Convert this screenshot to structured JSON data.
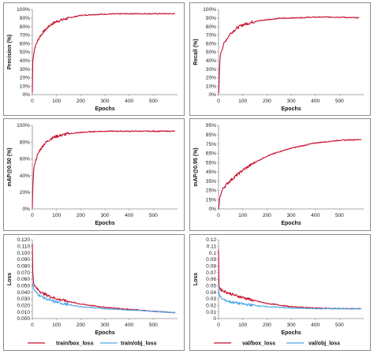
{
  "colors": {
    "red": "#c8102e",
    "blue": "#4fa8e8",
    "axis": "#8c8c8c"
  },
  "chart_data": [
    {
      "id": "precision",
      "type": "line",
      "xlabel": "Epochs",
      "ylabel": "Precision (%)",
      "xlim": [
        0,
        600
      ],
      "ylim": [
        0,
        100
      ],
      "xticks": [
        "0",
        "100",
        "200",
        "300",
        "400",
        "500"
      ],
      "yticks": [
        "0%",
        "10%",
        "20%",
        "30%",
        "40%",
        "50%",
        "60%",
        "70%",
        "80%",
        "90%",
        "100%"
      ],
      "series": [
        {
          "color": "red",
          "x": [
            0,
            2,
            5,
            10,
            20,
            30,
            50,
            75,
            100,
            150,
            200,
            250,
            300,
            400,
            500,
            590
          ],
          "values": [
            2,
            40,
            47,
            55,
            62,
            68,
            75,
            82,
            86,
            90,
            93,
            94,
            94.5,
            95,
            95,
            95
          ]
        }
      ]
    },
    {
      "id": "recall",
      "type": "line",
      "xlabel": "Epochs",
      "ylabel": "Recall (%)",
      "xlim": [
        0,
        600
      ],
      "ylim": [
        0,
        100
      ],
      "xticks": [
        "0",
        "100",
        "200",
        "300",
        "400",
        "500"
      ],
      "yticks": [
        "0%",
        "10%",
        "20%",
        "30%",
        "40%",
        "50%",
        "60%",
        "70%",
        "80%",
        "90%",
        "100%"
      ],
      "series": [
        {
          "color": "red",
          "x": [
            0,
            2,
            5,
            10,
            20,
            30,
            50,
            75,
            100,
            150,
            200,
            250,
            300,
            400,
            500,
            580
          ],
          "values": [
            1,
            10,
            40,
            50,
            58,
            64,
            72,
            78,
            82,
            86,
            88,
            89.5,
            90,
            91,
            91,
            90
          ]
        }
      ]
    },
    {
      "id": "map50",
      "type": "line",
      "xlabel": "Epochs",
      "ylabel": "mAP@0.50 (%)",
      "xlim": [
        0,
        600
      ],
      "ylim": [
        0,
        100
      ],
      "xticks": [
        "0",
        "100",
        "200",
        "300",
        "400",
        "500"
      ],
      "yticks": [
        "0%",
        "20%",
        "40%",
        "60%",
        "80%",
        "100%"
      ],
      "series": [
        {
          "color": "red",
          "x": [
            0,
            2,
            5,
            10,
            20,
            30,
            50,
            75,
            100,
            150,
            200,
            250,
            300,
            400,
            500,
            590
          ],
          "values": [
            1,
            25,
            45,
            55,
            63,
            70,
            78,
            84,
            87,
            90,
            91.5,
            92.5,
            93,
            93,
            93,
            93
          ]
        }
      ]
    },
    {
      "id": "map5095",
      "type": "line",
      "xlabel": "Epochs",
      "ylabel": "mAP@0.95 (%)",
      "xlim": [
        0,
        600
      ],
      "ylim": [
        0,
        95
      ],
      "xticks": [
        "0",
        "100",
        "200",
        "300",
        "400",
        "500"
      ],
      "yticks": [
        "0%",
        "15%",
        "25%",
        "35%",
        "45%",
        "55%",
        "65%",
        "75%",
        "85%",
        "95%"
      ],
      "series": [
        {
          "color": "red",
          "x": [
            0,
            2,
            5,
            10,
            20,
            40,
            60,
            100,
            150,
            200,
            250,
            300,
            400,
            500,
            590
          ],
          "values": [
            0,
            5,
            12,
            18,
            24,
            30,
            35,
            44,
            53,
            60,
            65,
            69,
            75,
            78,
            79
          ]
        }
      ]
    },
    {
      "id": "train_loss",
      "type": "line",
      "xlabel": "Epochs",
      "ylabel": "Loss",
      "xlim": [
        0,
        600
      ],
      "ylim": [
        0,
        0.12
      ],
      "xticks": [
        "0",
        "100",
        "200",
        "300",
        "400",
        "500"
      ],
      "yticks": [
        "0.000",
        "0.010",
        "0.020",
        "0.030",
        "0.040",
        "0.050",
        "0.060",
        "0.070",
        "0.080",
        "0.090",
        "0.100",
        "0.110",
        "0.120"
      ],
      "legend_position": "bottom",
      "series": [
        {
          "name": "train/box_loss",
          "color": "red",
          "x": [
            0,
            2,
            5,
            10,
            20,
            40,
            70,
            100,
            150,
            200,
            300,
            400,
            500,
            590
          ],
          "values": [
            0.114,
            0.07,
            0.055,
            0.049,
            0.045,
            0.039,
            0.034,
            0.03,
            0.026,
            0.022,
            0.017,
            0.014,
            0.011,
            0.009
          ]
        },
        {
          "name": "train/obj_loss",
          "color": "blue",
          "x": [
            0,
            2,
            5,
            10,
            20,
            40,
            70,
            100,
            150,
            200,
            300,
            400,
            500,
            590
          ],
          "values": [
            0.056,
            0.05,
            0.046,
            0.042,
            0.038,
            0.033,
            0.028,
            0.025,
            0.021,
            0.018,
            0.015,
            0.013,
            0.011,
            0.009
          ]
        }
      ]
    },
    {
      "id": "val_loss",
      "type": "line",
      "xlabel": "Epochs",
      "ylabel": "Loss",
      "xlim": [
        0,
        600
      ],
      "ylim": [
        0,
        0.12
      ],
      "xticks": [
        "0",
        "100",
        "200",
        "300",
        "400",
        "500"
      ],
      "yticks": [
        "0",
        "0.01",
        "0.02",
        "0.03",
        "0.04",
        "0.05",
        "0.06",
        "0.07",
        "0.08",
        "0.09",
        "0.1",
        "0.11",
        "0.12"
      ],
      "legend_position": "bottom",
      "series": [
        {
          "name": "val/box_loss",
          "color": "red",
          "x": [
            0,
            2,
            5,
            10,
            20,
            40,
            70,
            100,
            150,
            200,
            300,
            400,
            500,
            590
          ],
          "values": [
            0.105,
            0.05,
            0.046,
            0.044,
            0.042,
            0.039,
            0.035,
            0.032,
            0.027,
            0.023,
            0.018,
            0.016,
            0.015,
            0.015
          ]
        },
        {
          "name": "val/obj_loss",
          "color": "blue",
          "x": [
            0,
            2,
            5,
            10,
            20,
            40,
            70,
            100,
            150,
            200,
            300,
            400,
            500,
            590
          ],
          "values": [
            0.052,
            0.038,
            0.034,
            0.031,
            0.029,
            0.026,
            0.024,
            0.022,
            0.02,
            0.018,
            0.016,
            0.015,
            0.015,
            0.015
          ]
        }
      ]
    }
  ]
}
